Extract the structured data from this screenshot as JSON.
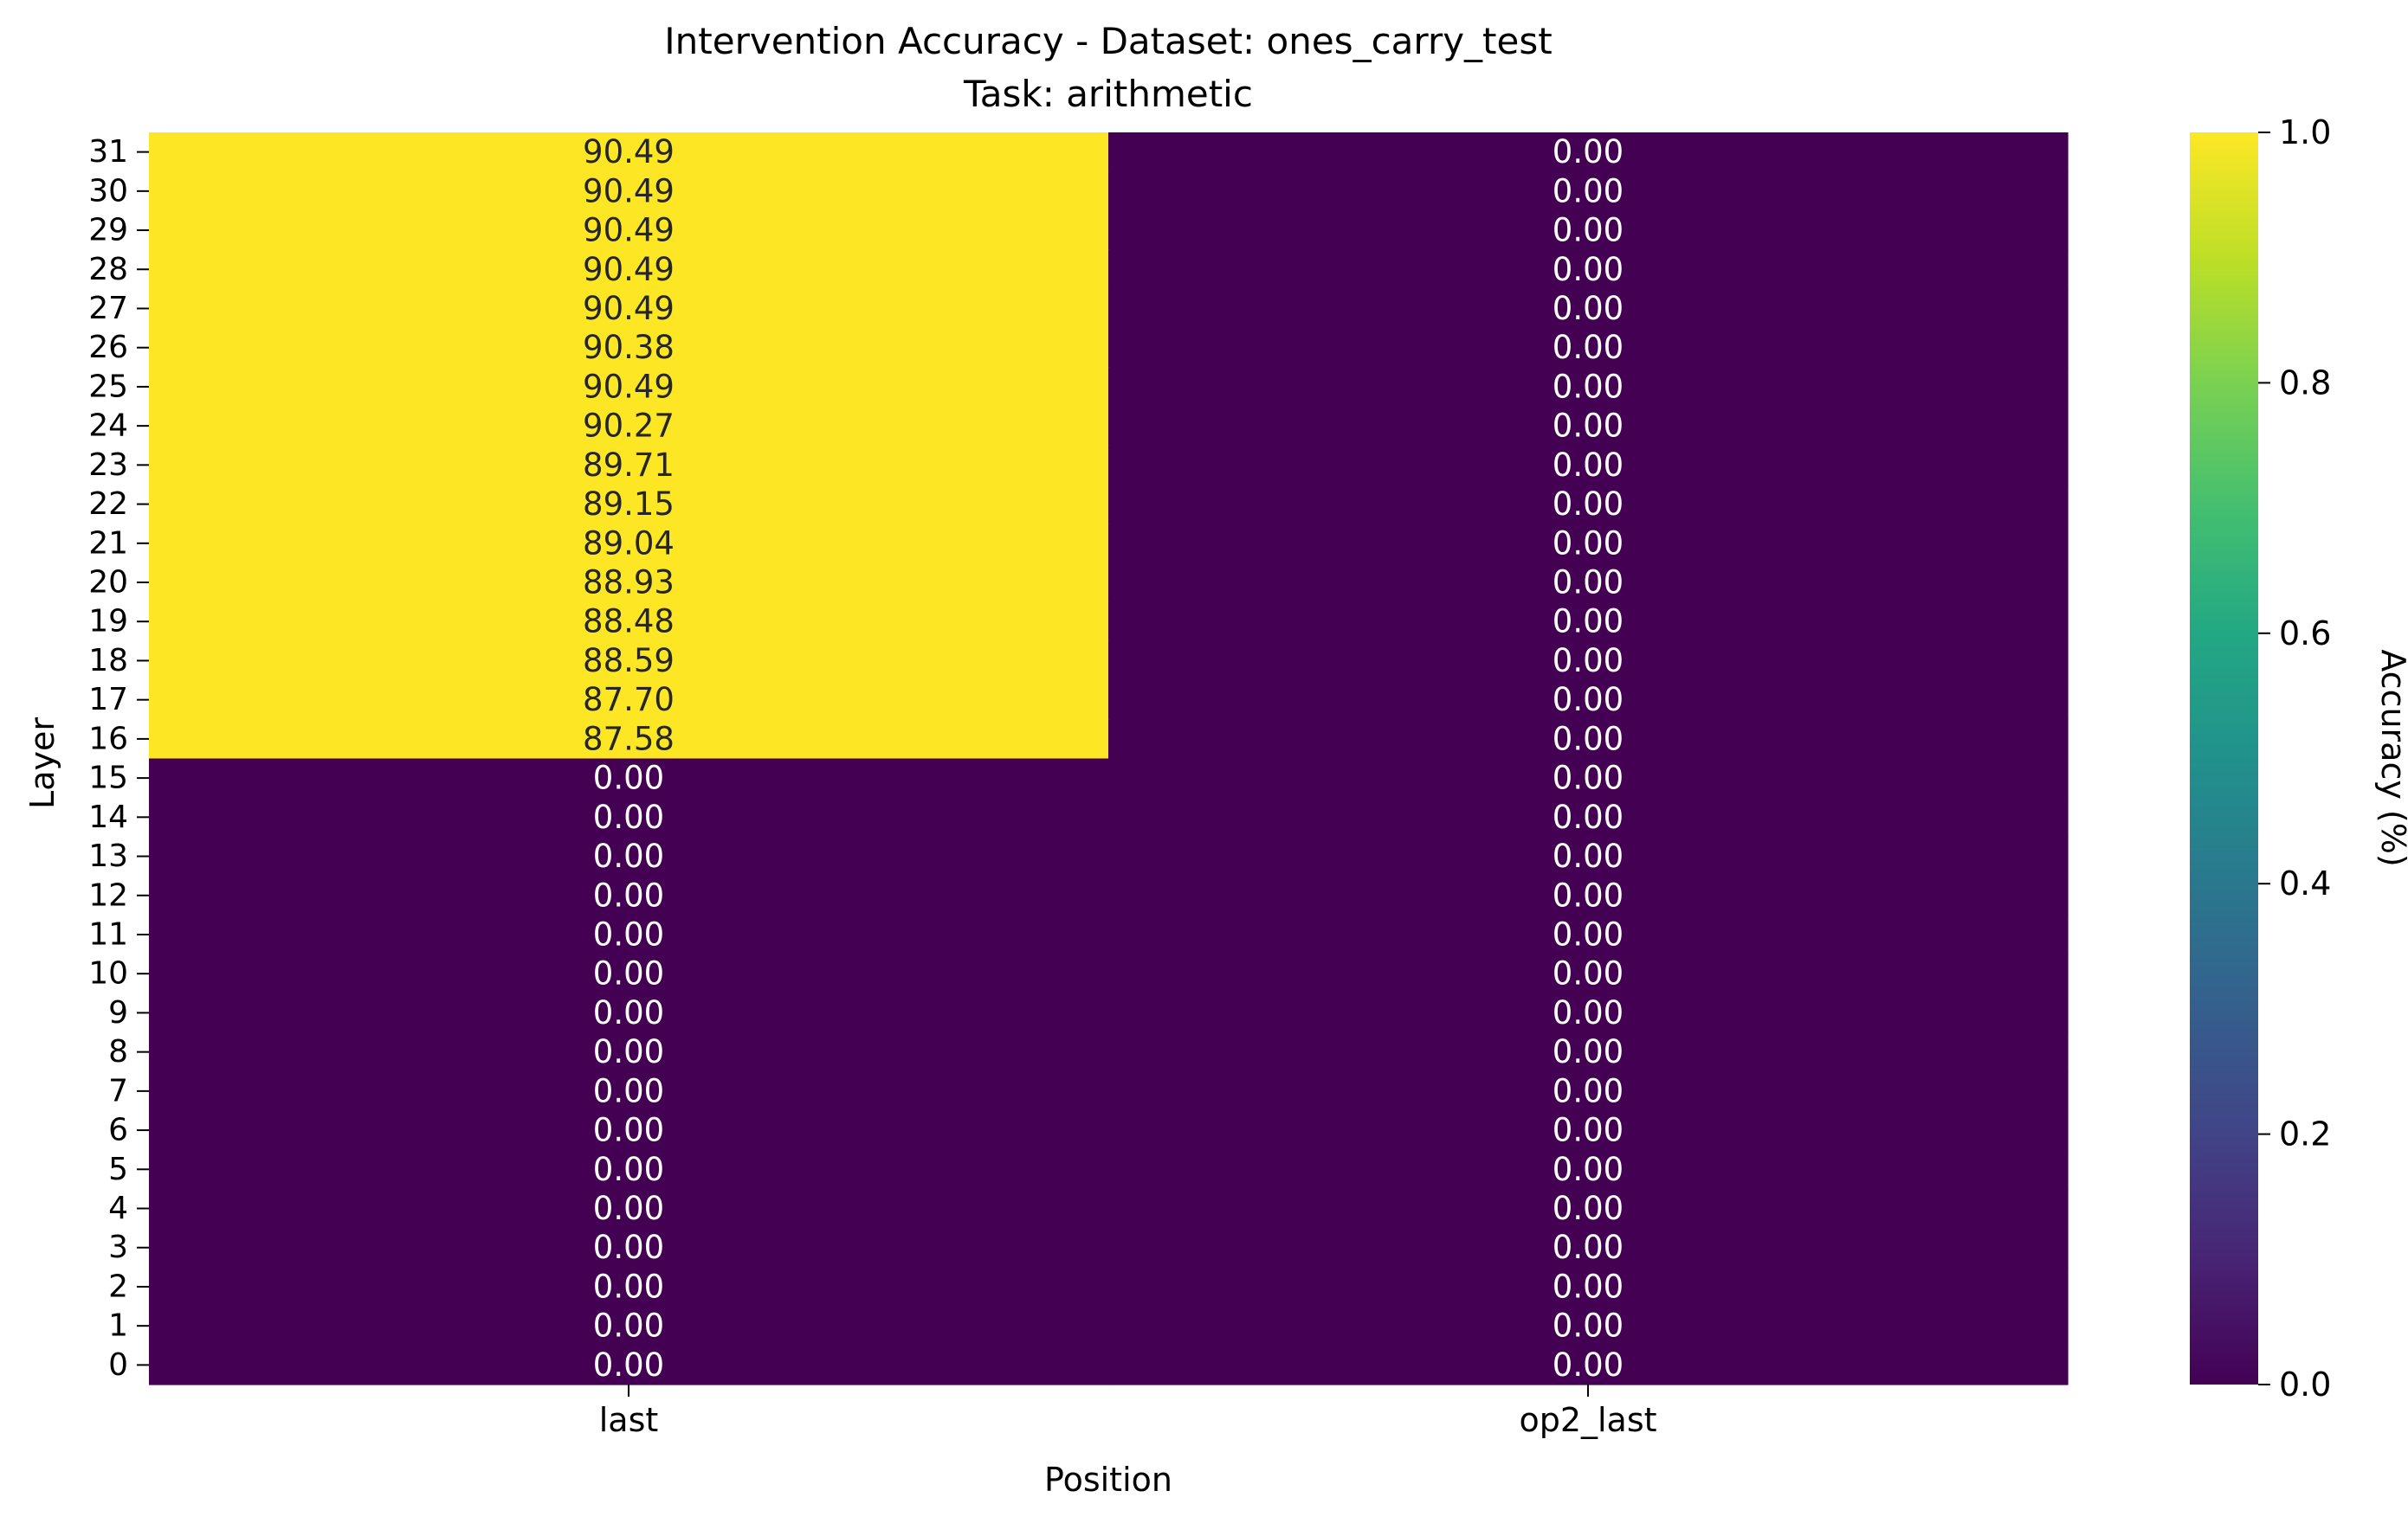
{
  "chart_data": {
    "type": "heatmap",
    "title": "Intervention Accuracy - Dataset: ones_carry_test",
    "subtitle": "Task: arithmetic",
    "xlabel": "Position",
    "ylabel": "Layer",
    "x_categories": [
      "last",
      "op2_last"
    ],
    "y_categories": [
      "31",
      "30",
      "29",
      "28",
      "27",
      "26",
      "25",
      "24",
      "23",
      "22",
      "21",
      "20",
      "19",
      "18",
      "17",
      "16",
      "15",
      "14",
      "13",
      "12",
      "11",
      "10",
      "9",
      "8",
      "7",
      "6",
      "5",
      "4",
      "3",
      "2",
      "1",
      "0"
    ],
    "values": [
      [
        90.49,
        0.0
      ],
      [
        90.49,
        0.0
      ],
      [
        90.49,
        0.0
      ],
      [
        90.49,
        0.0
      ],
      [
        90.49,
        0.0
      ],
      [
        90.38,
        0.0
      ],
      [
        90.49,
        0.0
      ],
      [
        90.27,
        0.0
      ],
      [
        89.71,
        0.0
      ],
      [
        89.15,
        0.0
      ],
      [
        89.04,
        0.0
      ],
      [
        88.93,
        0.0
      ],
      [
        88.48,
        0.0
      ],
      [
        88.59,
        0.0
      ],
      [
        87.7,
        0.0
      ],
      [
        87.58,
        0.0
      ],
      [
        0.0,
        0.0
      ],
      [
        0.0,
        0.0
      ],
      [
        0.0,
        0.0
      ],
      [
        0.0,
        0.0
      ],
      [
        0.0,
        0.0
      ],
      [
        0.0,
        0.0
      ],
      [
        0.0,
        0.0
      ],
      [
        0.0,
        0.0
      ],
      [
        0.0,
        0.0
      ],
      [
        0.0,
        0.0
      ],
      [
        0.0,
        0.0
      ],
      [
        0.0,
        0.0
      ],
      [
        0.0,
        0.0
      ],
      [
        0.0,
        0.0
      ],
      [
        0.0,
        0.0
      ],
      [
        0.0,
        0.0
      ]
    ],
    "colormap": "viridis",
    "colorbar": {
      "label": "Accuracy (%)",
      "range": [
        0.0,
        1.0
      ],
      "ticks": [
        "0.0",
        "0.2",
        "0.4",
        "0.6",
        "0.8",
        "1.0"
      ]
    },
    "grid": false
  }
}
